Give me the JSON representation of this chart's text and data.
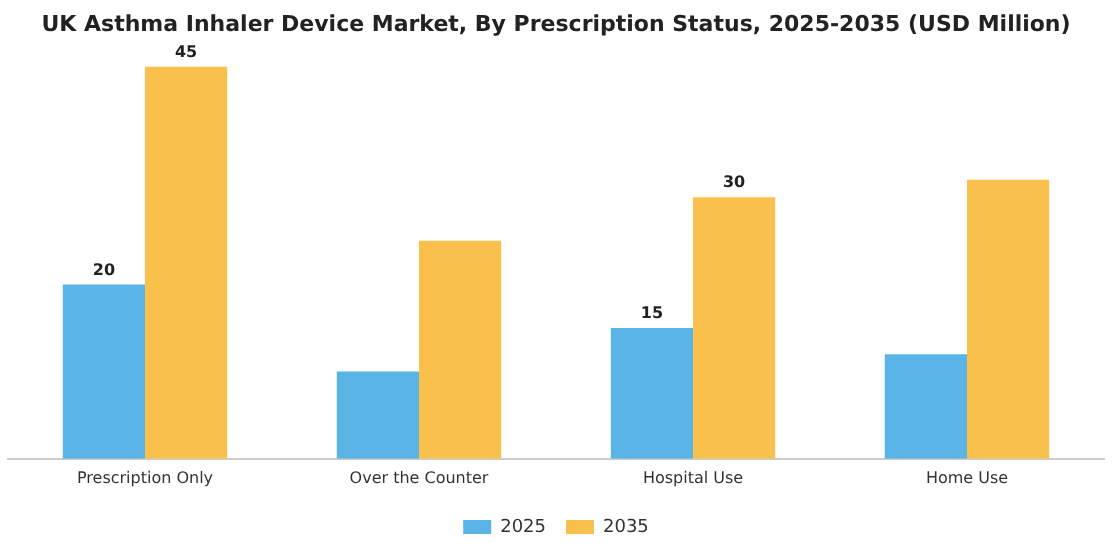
{
  "chart_data": {
    "type": "bar",
    "title": "UK Asthma Inhaler Device Market, By Prescription Status, 2025-2035 (USD Million)",
    "categories": [
      "Prescription Only",
      "Over the Counter",
      "Hospital Use",
      "Home Use"
    ],
    "series": [
      {
        "name": "2025",
        "color": "#5ab4e5",
        "values": [
          20,
          10,
          15,
          12
        ],
        "value_labels": [
          "20",
          null,
          "15",
          null
        ]
      },
      {
        "name": "2035",
        "color": "#f9c04c",
        "values": [
          45,
          25,
          30,
          32
        ],
        "value_labels": [
          "45",
          null,
          "30",
          null
        ]
      }
    ],
    "legend": "bottom",
    "grid": false
  }
}
